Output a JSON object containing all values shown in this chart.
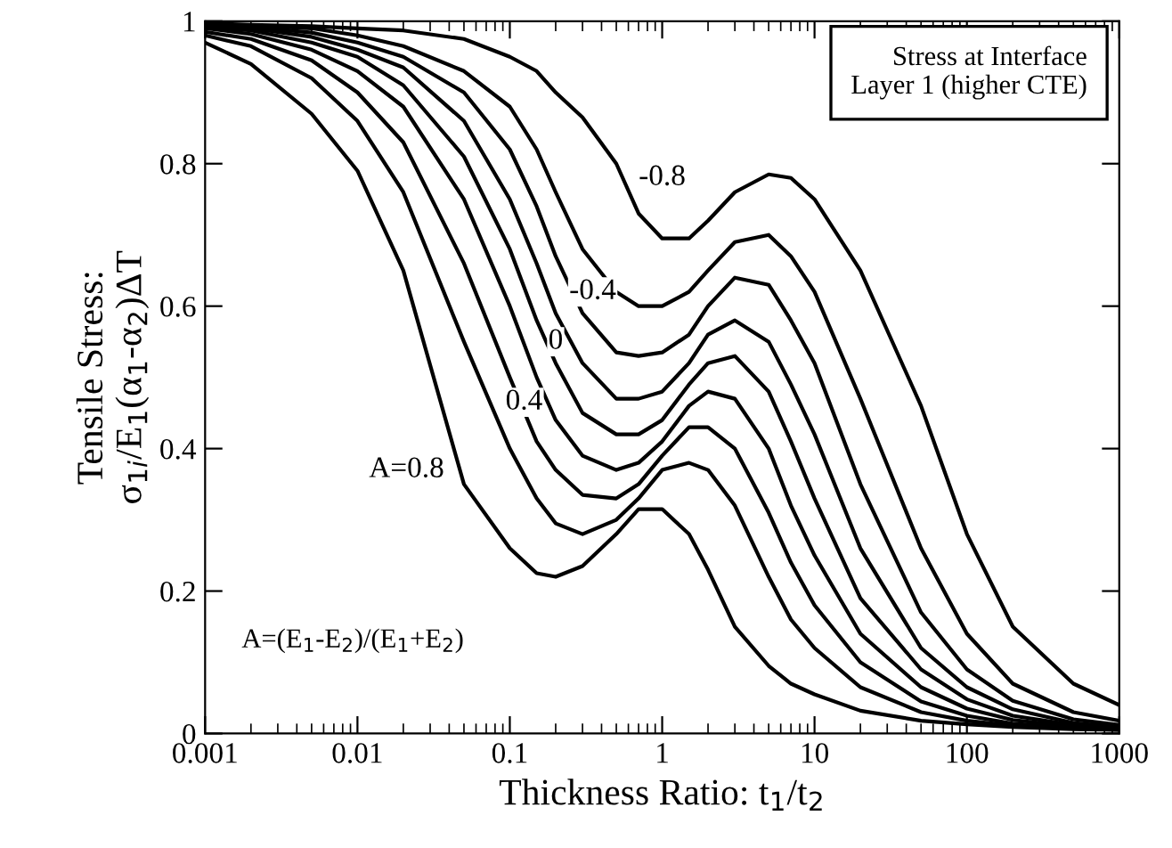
{
  "chart_data": {
    "type": "line",
    "xlabel": "Thickness Ratio: t$_{1}$/t$_{2}$",
    "ylabel": "Tensile Stress:\nσ$_{1i}$/E$_{1}$(α$_{1}$-α$_{2}$)ΔT",
    "log": "x",
    "x": [
      0.001,
      0.002,
      0.005,
      0.01,
      0.02,
      0.05,
      0.1,
      0.15,
      0.2,
      0.3,
      0.5,
      0.7,
      1,
      1.5,
      2,
      3,
      5,
      7,
      10,
      20,
      50,
      100,
      200,
      500,
      1000
    ],
    "xlim": [
      0.001,
      1000
    ],
    "xticks": [
      0.001,
      0.01,
      0.1,
      1,
      10,
      100,
      1000
    ],
    "ylim": [
      0,
      1
    ],
    "yticks": [
      0,
      0.2,
      0.4,
      0.6,
      0.8,
      1
    ],
    "marker": "none",
    "line_style": "solid",
    "series": [
      {
        "color": "#000000",
        "values": [
          0.97,
          0.94,
          0.87,
          0.79,
          0.65,
          0.35,
          0.26,
          0.225,
          0.22,
          0.235,
          0.28,
          0.315,
          0.315,
          0.28,
          0.23,
          0.15,
          0.095,
          0.07,
          0.055,
          0.032,
          0.018,
          0.013,
          0.009,
          0.006,
          0.005
        ]
      },
      {
        "color": "#000000",
        "values": [
          0.98,
          0.965,
          0.92,
          0.86,
          0.76,
          0.55,
          0.4,
          0.33,
          0.295,
          0.28,
          0.3,
          0.33,
          0.37,
          0.38,
          0.37,
          0.32,
          0.22,
          0.16,
          0.12,
          0.065,
          0.03,
          0.018,
          0.011,
          0.007,
          0.005
        ]
      },
      {
        "color": "#000000",
        "values": [
          0.985,
          0.975,
          0.945,
          0.9,
          0.83,
          0.66,
          0.5,
          0.41,
          0.37,
          0.335,
          0.33,
          0.35,
          0.39,
          0.43,
          0.43,
          0.4,
          0.31,
          0.24,
          0.18,
          0.1,
          0.045,
          0.025,
          0.014,
          0.008,
          0.006
        ]
      },
      {
        "color": "#000000",
        "values": [
          0.99,
          0.982,
          0.96,
          0.93,
          0.88,
          0.75,
          0.6,
          0.5,
          0.44,
          0.39,
          0.37,
          0.38,
          0.41,
          0.46,
          0.48,
          0.47,
          0.4,
          0.32,
          0.25,
          0.14,
          0.065,
          0.035,
          0.019,
          0.01,
          0.007
        ]
      },
      {
        "color": "#000000",
        "values": [
          0.992,
          0.987,
          0.97,
          0.95,
          0.91,
          0.81,
          0.68,
          0.58,
          0.52,
          0.45,
          0.42,
          0.42,
          0.44,
          0.49,
          0.52,
          0.53,
          0.48,
          0.41,
          0.33,
          0.19,
          0.09,
          0.048,
          0.025,
          0.012,
          0.008
        ]
      },
      {
        "color": "#000000",
        "values": [
          0.994,
          0.99,
          0.978,
          0.96,
          0.935,
          0.86,
          0.75,
          0.66,
          0.59,
          0.52,
          0.47,
          0.47,
          0.48,
          0.52,
          0.56,
          0.58,
          0.55,
          0.49,
          0.42,
          0.26,
          0.12,
          0.065,
          0.034,
          0.015,
          0.009
        ]
      },
      {
        "color": "#000000",
        "values": [
          0.995,
          0.992,
          0.984,
          0.97,
          0.95,
          0.9,
          0.82,
          0.74,
          0.67,
          0.59,
          0.535,
          0.53,
          0.535,
          0.56,
          0.6,
          0.64,
          0.63,
          0.58,
          0.52,
          0.35,
          0.17,
          0.09,
          0.046,
          0.02,
          0.012
        ]
      },
      {
        "color": "#000000",
        "values": [
          0.996,
          0.994,
          0.99,
          0.98,
          0.965,
          0.93,
          0.88,
          0.82,
          0.76,
          0.68,
          0.62,
          0.6,
          0.6,
          0.62,
          0.65,
          0.69,
          0.7,
          0.67,
          0.62,
          0.47,
          0.26,
          0.14,
          0.07,
          0.03,
          0.018
        ]
      },
      {
        "color": "#000000",
        "values": [
          0.997,
          0.995,
          0.993,
          0.99,
          0.987,
          0.975,
          0.95,
          0.93,
          0.9,
          0.865,
          0.8,
          0.73,
          0.695,
          0.695,
          0.72,
          0.76,
          0.785,
          0.78,
          0.75,
          0.65,
          0.46,
          0.28,
          0.15,
          0.07,
          0.04
        ]
      }
    ],
    "annotations": [
      "Stress at Interface\nLayer 1 (higher CTE)",
      "A=(E$_{1}$-E$_{2}$)/(E$_{1}$+E$_{2}$)",
      {
        "text": "-0.8",
        "x": 1.0,
        "y": 0.78
      },
      {
        "text": "-0.4",
        "x": 0.35,
        "y": 0.62
      },
      {
        "text": "0",
        "x": 0.2,
        "y": 0.55
      },
      {
        "text": "0.4",
        "x": 0.124,
        "y": 0.465
      },
      {
        "text": "A=0.8",
        "x": 0.021,
        "y": 0.37
      }
    ]
  }
}
